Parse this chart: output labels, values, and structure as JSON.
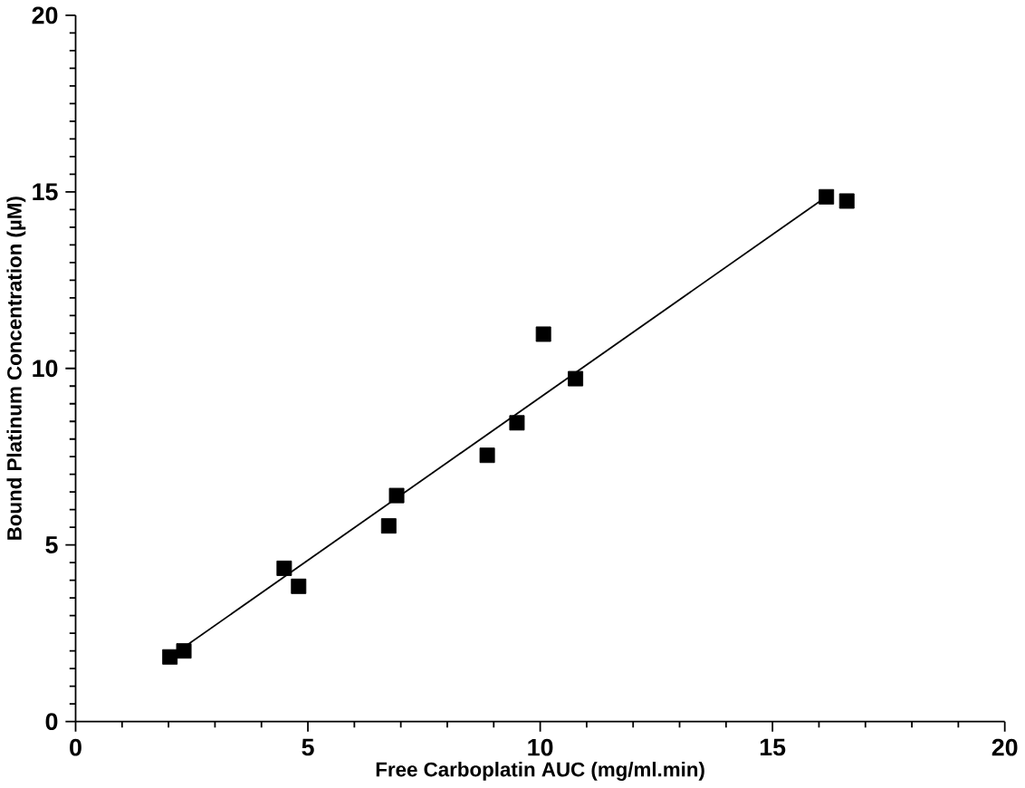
{
  "chart_data": {
    "type": "scatter",
    "xlabel": "Free Carboplatin AUC (mg/ml.min)",
    "ylabel": "Bound Platinum Concentration (µM)",
    "xlim": [
      0,
      20
    ],
    "ylim": [
      0,
      20
    ],
    "xticks": [
      0,
      5,
      10,
      15,
      20
    ],
    "yticks": [
      0,
      5,
      10,
      15,
      20
    ],
    "grid": false,
    "series": [
      {
        "color": "#000000",
        "marker": "square",
        "x": [
          2.03,
          2.33,
          4.49,
          4.8,
          6.74,
          6.91,
          8.86,
          9.5,
          10.07,
          10.76,
          16.16,
          16.6
        ],
        "values": [
          1.83,
          2.0,
          4.34,
          3.83,
          5.54,
          6.4,
          7.54,
          8.46,
          10.97,
          9.71,
          14.86,
          14.74
        ]
      },
      {
        "type": "line",
        "color": "#000000",
        "x": [
          2.0,
          16.2
        ],
        "values": [
          1.8,
          14.9
        ]
      }
    ]
  }
}
